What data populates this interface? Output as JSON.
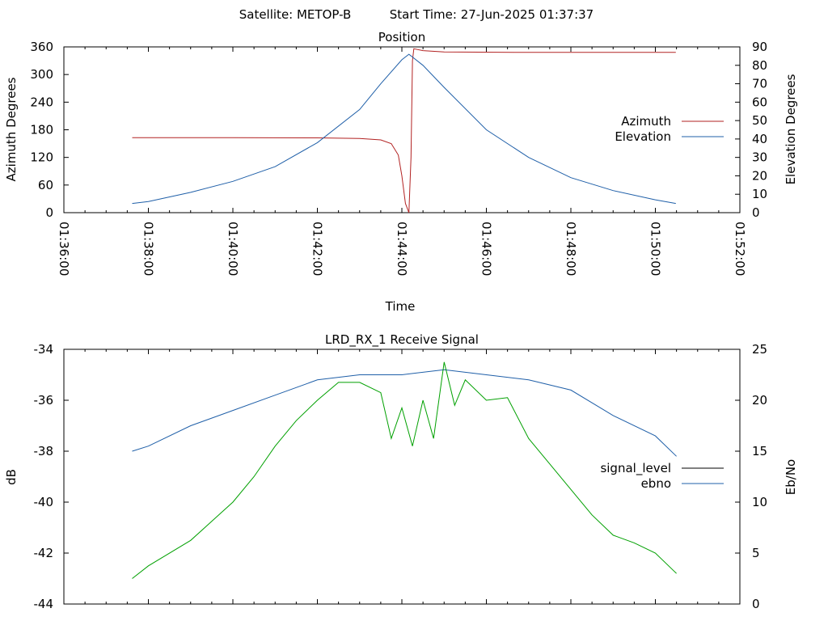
{
  "header": {
    "satellite": "Satellite: METOP-B",
    "start_time": "Start Time: 27-Jun-2025 01:37:37"
  },
  "colors": {
    "azimuth": "#b22222",
    "elevation": "#1f5fa8",
    "signal_level": "#000000",
    "ebno": "#1f5fa8",
    "green_trace": "#00a000"
  },
  "chart_data": [
    {
      "type": "line",
      "title": "Position",
      "xlabel": "Time",
      "ylabel": "Azimuth Degrees",
      "y2label": "Elevation Degrees",
      "xlim": [
        "01:36:00",
        "01:52:00"
      ],
      "x_ticks": [
        "01:36:00",
        "01:38:00",
        "01:40:00",
        "01:42:00",
        "01:44:00",
        "01:46:00",
        "01:48:00",
        "01:50:00",
        "01:52:00"
      ],
      "ylim": [
        0,
        360
      ],
      "y_ticks": [
        "0",
        "60",
        "120",
        "180",
        "240",
        "300",
        "360"
      ],
      "y2lim": [
        0,
        90
      ],
      "y2_ticks": [
        "0",
        "10",
        "20",
        "30",
        "40",
        "50",
        "60",
        "70",
        "80",
        "90"
      ],
      "grid": false,
      "legend": "right",
      "series": [
        {
          "name": "Azimuth",
          "axis": "y",
          "color": "#b22222",
          "points": [
            [
              "01:37:37",
              163
            ],
            [
              "01:40:00",
              163
            ],
            [
              "01:42:00",
              162.5
            ],
            [
              "01:43:00",
              161
            ],
            [
              "01:43:30",
              158
            ],
            [
              "01:43:45",
              150
            ],
            [
              "01:43:55",
              125
            ],
            [
              "01:44:00",
              80
            ],
            [
              "01:44:05",
              20
            ],
            [
              "01:44:10",
              0
            ],
            [
              "01:44:13",
              120
            ],
            [
              "01:44:15",
              330
            ],
            [
              "01:44:17",
              356
            ],
            [
              "01:44:30",
              352
            ],
            [
              "01:45:00",
              349
            ],
            [
              "01:47:00",
              348
            ],
            [
              "01:50:00",
              348
            ],
            [
              "01:50:29",
              348
            ]
          ]
        },
        {
          "name": "Elevation",
          "axis": "y2",
          "color": "#1f5fa8",
          "points": [
            [
              "01:37:37",
              5
            ],
            [
              "01:38:00",
              6
            ],
            [
              "01:39:00",
              11
            ],
            [
              "01:40:00",
              17
            ],
            [
              "01:41:00",
              25
            ],
            [
              "01:42:00",
              38
            ],
            [
              "01:43:00",
              56
            ],
            [
              "01:43:30",
              70
            ],
            [
              "01:44:00",
              83
            ],
            [
              "01:44:10",
              86
            ],
            [
              "01:44:30",
              80
            ],
            [
              "01:45:00",
              68
            ],
            [
              "01:46:00",
              45
            ],
            [
              "01:47:00",
              30
            ],
            [
              "01:48:00",
              19
            ],
            [
              "01:49:00",
              12
            ],
            [
              "01:50:00",
              7
            ],
            [
              "01:50:29",
              5
            ]
          ]
        }
      ]
    },
    {
      "type": "line",
      "title": "LRD_RX_1 Receive Signal",
      "ylabel": "dB",
      "y2label": "Eb/No",
      "xlim": [
        "01:36:00",
        "01:52:00"
      ],
      "ylim": [
        -44,
        -34
      ],
      "y_ticks": [
        "-34",
        "-36",
        "-38",
        "-40",
        "-42",
        "-44"
      ],
      "y2lim": [
        0,
        25
      ],
      "y2_ticks": [
        "0",
        "5",
        "10",
        "15",
        "20",
        "25"
      ],
      "grid": false,
      "legend": "right",
      "series": [
        {
          "name": "signal_level",
          "axis": "y",
          "color": "#000000",
          "points": []
        },
        {
          "name": "ebno",
          "axis": "y2",
          "color": "#1f5fa8",
          "points": [
            [
              "01:37:37",
              15
            ],
            [
              "01:38:00",
              15.5
            ],
            [
              "01:39:00",
              17.5
            ],
            [
              "01:40:00",
              19
            ],
            [
              "01:41:00",
              20.5
            ],
            [
              "01:42:00",
              22
            ],
            [
              "01:43:00",
              22.5
            ],
            [
              "01:44:00",
              22.5
            ],
            [
              "01:45:00",
              23
            ],
            [
              "01:46:00",
              22.5
            ],
            [
              "01:47:00",
              22
            ],
            [
              "01:48:00",
              21
            ],
            [
              "01:49:00",
              18.5
            ],
            [
              "01:50:00",
              16.5
            ],
            [
              "01:50:30",
              14.5
            ]
          ]
        },
        {
          "axis": "y",
          "color": "#00a000",
          "points": [
            [
              "01:37:37",
              -43
            ],
            [
              "01:38:00",
              -42.5
            ],
            [
              "01:39:00",
              -41.5
            ],
            [
              "01:40:00",
              -40
            ],
            [
              "01:40:30",
              -39
            ],
            [
              "01:41:00",
              -37.8
            ],
            [
              "01:41:30",
              -36.8
            ],
            [
              "01:42:00",
              -36
            ],
            [
              "01:42:30",
              -35.3
            ],
            [
              "01:43:00",
              -35.3
            ],
            [
              "01:43:30",
              -35.7
            ],
            [
              "01:43:45",
              -37.5
            ],
            [
              "01:44:00",
              -36.3
            ],
            [
              "01:44:15",
              -37.8
            ],
            [
              "01:44:30",
              -36
            ],
            [
              "01:44:45",
              -37.5
            ],
            [
              "01:45:00",
              -34.5
            ],
            [
              "01:45:15",
              -36.2
            ],
            [
              "01:45:30",
              -35.2
            ],
            [
              "01:46:00",
              -36
            ],
            [
              "01:46:30",
              -35.9
            ],
            [
              "01:47:00",
              -37.5
            ],
            [
              "01:47:30",
              -38.5
            ],
            [
              "01:48:00",
              -39.5
            ],
            [
              "01:48:30",
              -40.5
            ],
            [
              "01:49:00",
              -41.3
            ],
            [
              "01:49:30",
              -41.6
            ],
            [
              "01:50:00",
              -42
            ],
            [
              "01:50:30",
              -42.8
            ]
          ]
        }
      ]
    }
  ]
}
